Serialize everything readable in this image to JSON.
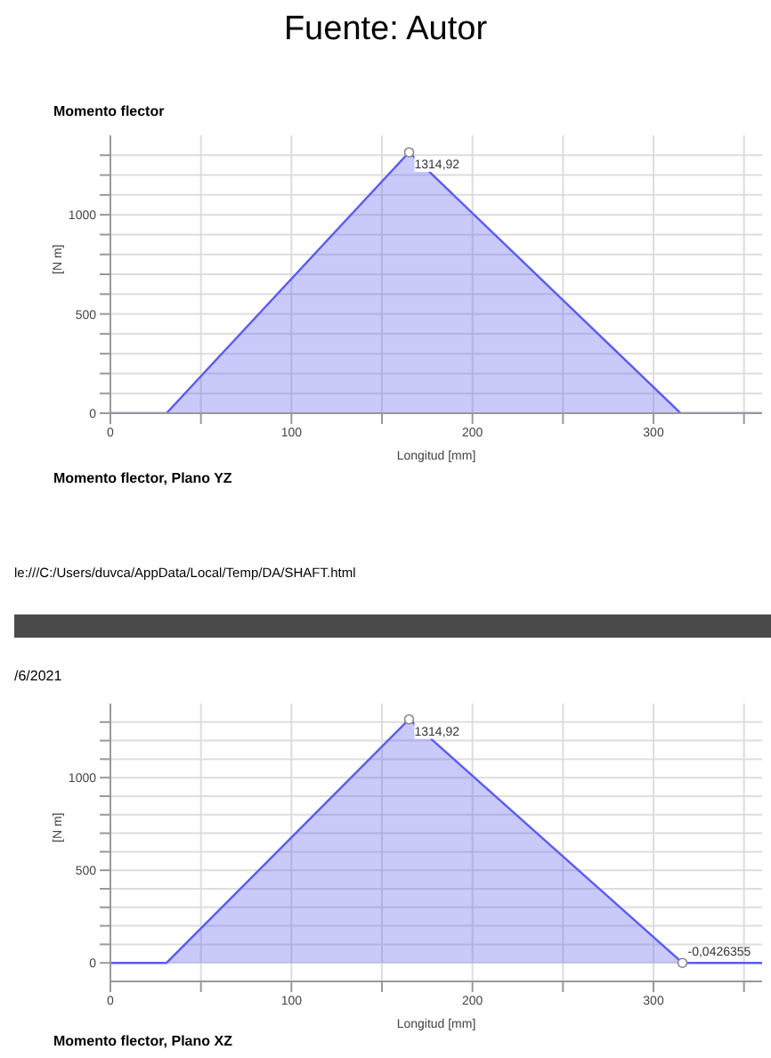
{
  "chart_data": [
    {
      "type": "area",
      "title": "Momento flector",
      "xlabel": "Longitud [mm]",
      "ylabel": "[N m]",
      "annotations": [
        "Fuente: Autor",
        "Momento flector, Plano YZ"
      ],
      "x": [
        0,
        31,
        165,
        315,
        360
      ],
      "values": [
        0,
        0,
        1314.92,
        0,
        0
      ],
      "value_labels": [
        null,
        null,
        "1314,92",
        null,
        null
      ],
      "color": "#5c5cf0",
      "marker": "none",
      "xlim": [
        0,
        360
      ],
      "xticks": [
        0,
        {
          "value": 50,
          "label": null
        },
        100,
        {
          "value": 150,
          "label": null
        },
        200,
        {
          "value": 250,
          "label": null
        },
        300,
        {
          "value": 350,
          "label": null
        }
      ],
      "ylim": [
        0,
        1400
      ],
      "yticks": [
        0,
        {
          "value": 100,
          "label": null
        },
        {
          "value": 200,
          "label": null
        },
        {
          "value": 300,
          "label": null
        },
        {
          "value": 400,
          "label": null
        },
        500,
        {
          "value": 600,
          "label": null
        },
        {
          "value": 700,
          "label": null
        },
        {
          "value": 800,
          "label": null
        },
        {
          "value": 900,
          "label": null
        },
        1000,
        {
          "value": 1100,
          "label": null
        },
        {
          "value": 1200,
          "label": null
        },
        {
          "value": 1300,
          "label": null
        }
      ],
      "grid": true,
      "legend": false
    },
    {
      "type": "area",
      "xlabel": "Longitud [mm]",
      "ylabel": "[N m]",
      "annotations": [
        "le:///C:/Users/duvca/AppData/Local/Temp/DA/SHAFT.html",
        "/6/2021",
        "Momento flector, Plano XZ"
      ],
      "x": [
        0,
        31,
        165,
        316,
        360
      ],
      "values": [
        0,
        0,
        1314.92,
        -0.0426355,
        0
      ],
      "value_labels": [
        null,
        null,
        "1314,92",
        "-0,0426355",
        null
      ],
      "color": "#5c5cf0",
      "marker": "none",
      "xlim": [
        0,
        360
      ],
      "xticks": [
        0,
        {
          "value": 50,
          "label": null
        },
        100,
        {
          "value": 150,
          "label": null
        },
        200,
        {
          "value": 250,
          "label": null
        },
        300,
        {
          "value": 350,
          "label": null
        }
      ],
      "ylim": [
        -100,
        1400
      ],
      "yticks": [
        0,
        {
          "value": 100,
          "label": null
        },
        {
          "value": 200,
          "label": null
        },
        {
          "value": 300,
          "label": null
        },
        {
          "value": 400,
          "label": null
        },
        500,
        {
          "value": 600,
          "label": null
        },
        {
          "value": 700,
          "label": null
        },
        {
          "value": 800,
          "label": null
        },
        {
          "value": 900,
          "label": null
        },
        1000,
        {
          "value": 1100,
          "label": null
        },
        {
          "value": 1200,
          "label": null
        },
        {
          "value": 1300,
          "label": null
        }
      ],
      "grid": true,
      "legend": false
    }
  ]
}
